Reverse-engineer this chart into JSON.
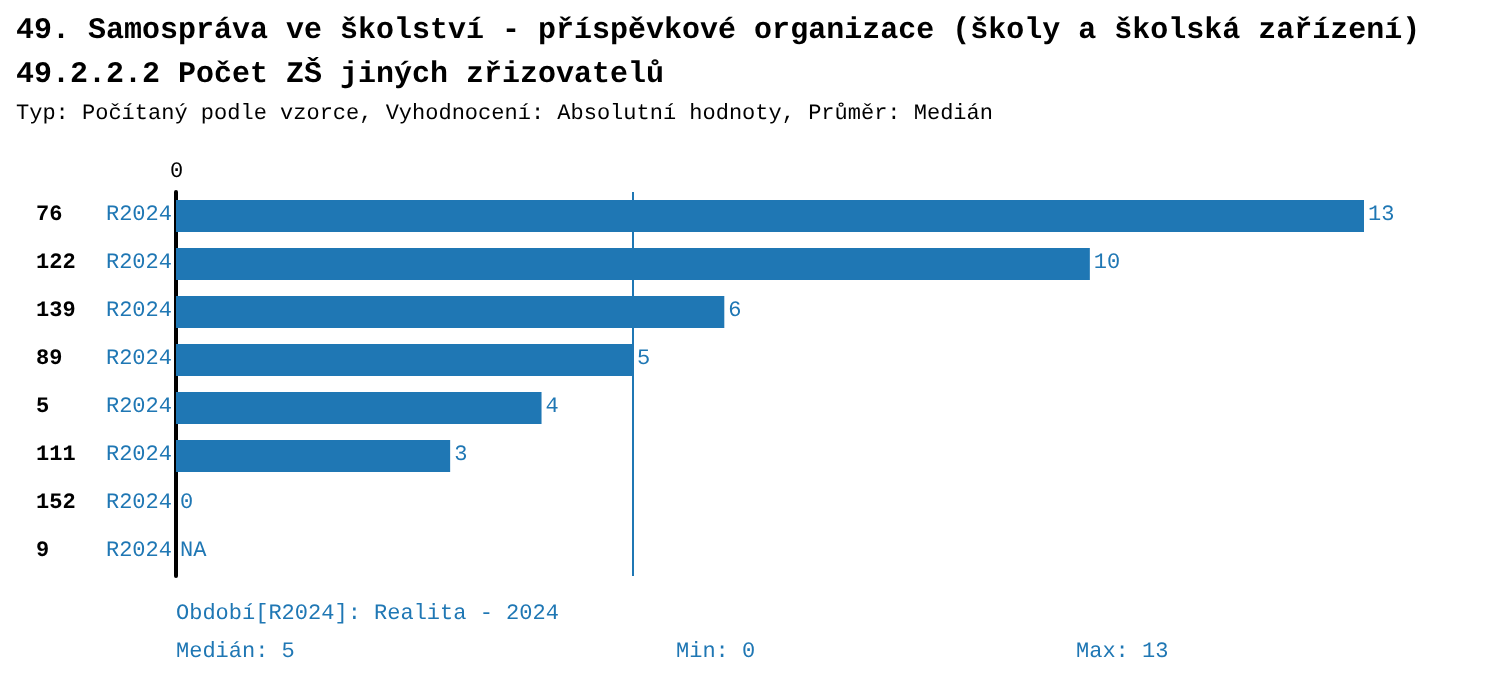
{
  "chart_data": {
    "type": "bar",
    "orientation": "horizontal",
    "title": "49. Samospráva ve školství - příspěvkové organizace (školy a školská zařízení)",
    "subtitle": "49.2.2.2 Počet ZŠ jiných zřizovatelů",
    "categories": [
      "76",
      "122",
      "139",
      "89",
      "5",
      "111",
      "152",
      "9"
    ],
    "series": [
      {
        "name": "R2024",
        "color": "#1f77b4",
        "values": [
          13,
          10,
          6,
          5,
          4,
          3,
          0,
          null
        ],
        "value_labels": [
          "13",
          "10",
          "6",
          "5",
          "4",
          "3",
          "0",
          "NA"
        ]
      }
    ],
    "xlim": [
      0,
      13
    ],
    "legend": false,
    "ref_lines": [
      {
        "axis": "x",
        "value": 5,
        "color": "#1f77b4"
      }
    ],
    "annotations": [
      "Typ: Počítaný podle vzorce, Vyhodnocení: Absolutní hodnoty, Průměr: Medián",
      "Období[R2024]: Realita - 2024",
      "Medián: 5",
      "Min: 0",
      "Max: 13",
      "0"
    ]
  }
}
